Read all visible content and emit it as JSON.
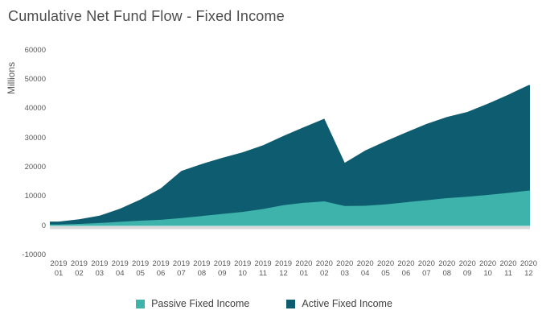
{
  "title": "Cumulative Net Fund Flow - Fixed Income",
  "y_axis": {
    "label": "Millions",
    "ticks": [
      60000,
      50000,
      40000,
      30000,
      20000,
      10000,
      0,
      -10000
    ]
  },
  "x_axis": {
    "categories": [
      {
        "year": "2019",
        "month": "01"
      },
      {
        "year": "2019",
        "month": "02"
      },
      {
        "year": "2019",
        "month": "03"
      },
      {
        "year": "2019",
        "month": "04"
      },
      {
        "year": "2019",
        "month": "05"
      },
      {
        "year": "2019",
        "month": "06"
      },
      {
        "year": "2019",
        "month": "07"
      },
      {
        "year": "2019",
        "month": "08"
      },
      {
        "year": "2019",
        "month": "09"
      },
      {
        "year": "2019",
        "month": "10"
      },
      {
        "year": "2019",
        "month": "11"
      },
      {
        "year": "2019",
        "month": "12"
      },
      {
        "year": "2020",
        "month": "01"
      },
      {
        "year": "2020",
        "month": "02"
      },
      {
        "year": "2020",
        "month": "03"
      },
      {
        "year": "2020",
        "month": "04"
      },
      {
        "year": "2020",
        "month": "05"
      },
      {
        "year": "2020",
        "month": "06"
      },
      {
        "year": "2020",
        "month": "07"
      },
      {
        "year": "2020",
        "month": "08"
      },
      {
        "year": "2020",
        "month": "09"
      },
      {
        "year": "2020",
        "month": "10"
      },
      {
        "year": "2020",
        "month": "11"
      },
      {
        "year": "2020",
        "month": "12"
      }
    ]
  },
  "chart_data": {
    "type": "area",
    "stacked": true,
    "title": "Cumulative Net Fund Flow - Fixed Income",
    "ylabel": "Millions",
    "ylim": [
      -10000,
      60000
    ],
    "grid": false,
    "legend_position": "bottom",
    "categories": [
      "2019-01",
      "2019-02",
      "2019-03",
      "2019-04",
      "2019-05",
      "2019-06",
      "2019-07",
      "2019-08",
      "2019-09",
      "2019-10",
      "2019-11",
      "2019-12",
      "2020-01",
      "2020-02",
      "2020-03",
      "2020-04",
      "2020-05",
      "2020-06",
      "2020-07",
      "2020-08",
      "2020-09",
      "2020-10",
      "2020-11",
      "2020-12"
    ],
    "series": [
      {
        "name": "Passive Fixed Income",
        "color": "#3EB3AB",
        "values": [
          500,
          700,
          1000,
          1400,
          1800,
          2100,
          2700,
          3400,
          4100,
          4800,
          5800,
          7100,
          7900,
          8400,
          6800,
          6900,
          7400,
          8100,
          8800,
          9500,
          10000,
          10600,
          11300,
          12100
        ]
      },
      {
        "name": "Active Fixed Income",
        "color": "#0D5C70",
        "values": [
          1000,
          1600,
          2500,
          4500,
          7200,
          10800,
          16100,
          17800,
          19200,
          20400,
          21800,
          23700,
          25900,
          28300,
          14800,
          18900,
          21600,
          23900,
          26100,
          27800,
          29000,
          31200,
          33600,
          36100
        ]
      }
    ],
    "cumulative_totals": [
      1500,
      2300,
      3500,
      5900,
      9000,
      12900,
      18800,
      21200,
      23300,
      25200,
      27600,
      30800,
      33800,
      36700,
      21600,
      25800,
      29000,
      32000,
      34900,
      37300,
      39000,
      41800,
      44900,
      48200
    ]
  },
  "colors": {
    "axis_line": "#D9D9D9",
    "text": "#595959",
    "title_text": "#4D4D4D"
  }
}
